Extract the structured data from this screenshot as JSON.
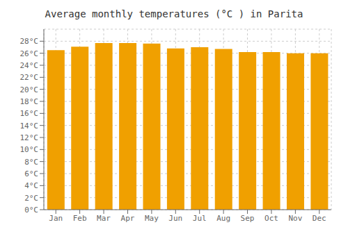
{
  "chart_data": {
    "type": "bar",
    "title": "Average monthly temperatures (°C ) in Parita",
    "categories": [
      "Jan",
      "Feb",
      "Mar",
      "Apr",
      "May",
      "Jun",
      "Jul",
      "Aug",
      "Sep",
      "Oct",
      "Nov",
      "Dec"
    ],
    "values": [
      26.5,
      27.1,
      27.7,
      27.7,
      27.6,
      26.8,
      27.0,
      26.7,
      26.2,
      26.2,
      26.0,
      26.0
    ],
    "color": "#F0A000",
    "ylim": [
      0,
      30
    ],
    "yticks": [
      {
        "value": 0,
        "label": "0°C"
      },
      {
        "value": 2,
        "label": "2°C"
      },
      {
        "value": 4,
        "label": "4°C"
      },
      {
        "value": 6,
        "label": "6°C"
      },
      {
        "value": 8,
        "label": "8°C"
      },
      {
        "value": 10,
        "label": "10°C"
      },
      {
        "value": 12,
        "label": "12°C"
      },
      {
        "value": 14,
        "label": "14°C"
      },
      {
        "value": 16,
        "label": "16°C"
      },
      {
        "value": 18,
        "label": "18°C"
      },
      {
        "value": 20,
        "label": "20°C"
      },
      {
        "value": 22,
        "label": "22°C"
      },
      {
        "value": 24,
        "label": "24°C"
      },
      {
        "value": 26,
        "label": "26°C"
      },
      {
        "value": 28,
        "label": "28°C"
      }
    ],
    "grid": true
  }
}
